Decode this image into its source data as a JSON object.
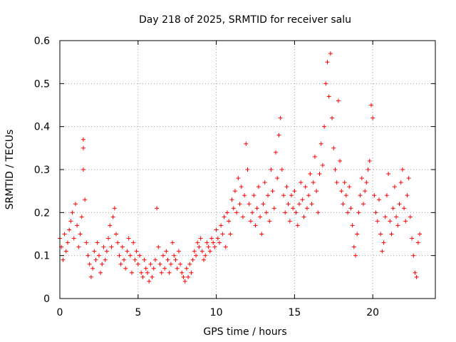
{
  "chart_data": {
    "type": "scatter",
    "title": "Day 218 of 2025, SRMTID for receiver salu",
    "xlabel": "GPS time / hours",
    "ylabel": "SRMTID / TECUs",
    "xlim": [
      0,
      24
    ],
    "ylim": [
      0,
      0.6
    ],
    "xticks": [
      0,
      5,
      10,
      15,
      20
    ],
    "xtick_labels": [
      "0",
      "5",
      "10",
      "15",
      "20"
    ],
    "yticks": [
      0,
      0.1,
      0.2,
      0.3,
      0.4,
      0.5,
      0.6
    ],
    "ytick_labels": [
      "0",
      "0.1",
      "0.2",
      "0.3",
      "0.4",
      "0.5",
      "0.6"
    ],
    "grid": true,
    "marker": "+",
    "color": "#ff0000",
    "series": [
      {
        "name": "SRMTID",
        "points": [
          [
            0.0,
            0.14
          ],
          [
            0.1,
            0.12
          ],
          [
            0.2,
            0.09
          ],
          [
            0.3,
            0.15
          ],
          [
            0.4,
            0.11
          ],
          [
            0.5,
            0.13
          ],
          [
            0.6,
            0.16
          ],
          [
            0.7,
            0.18
          ],
          [
            0.8,
            0.2
          ],
          [
            0.9,
            0.14
          ],
          [
            1.0,
            0.22
          ],
          [
            1.1,
            0.17
          ],
          [
            1.2,
            0.12
          ],
          [
            1.3,
            0.15
          ],
          [
            1.4,
            0.19
          ],
          [
            1.5,
            0.37
          ],
          [
            1.5,
            0.35
          ],
          [
            1.5,
            0.3
          ],
          [
            1.6,
            0.23
          ],
          [
            1.7,
            0.13
          ],
          [
            1.8,
            0.1
          ],
          [
            1.9,
            0.08
          ],
          [
            2.0,
            0.05
          ],
          [
            2.1,
            0.07
          ],
          [
            2.2,
            0.11
          ],
          [
            2.3,
            0.09
          ],
          [
            2.4,
            0.13
          ],
          [
            2.5,
            0.1
          ],
          [
            2.6,
            0.06
          ],
          [
            2.7,
            0.08
          ],
          [
            2.8,
            0.12
          ],
          [
            2.9,
            0.09
          ],
          [
            3.0,
            0.11
          ],
          [
            3.1,
            0.14
          ],
          [
            3.2,
            0.17
          ],
          [
            3.3,
            0.12
          ],
          [
            3.4,
            0.19
          ],
          [
            3.5,
            0.21
          ],
          [
            3.6,
            0.15
          ],
          [
            3.7,
            0.13
          ],
          [
            3.8,
            0.1
          ],
          [
            3.9,
            0.08
          ],
          [
            4.0,
            0.12
          ],
          [
            4.1,
            0.09
          ],
          [
            4.2,
            0.07
          ],
          [
            4.3,
            0.11
          ],
          [
            4.4,
            0.14
          ],
          [
            4.5,
            0.1
          ],
          [
            4.6,
            0.06
          ],
          [
            4.7,
            0.13
          ],
          [
            4.8,
            0.09
          ],
          [
            4.9,
            0.11
          ],
          [
            5.0,
            0.08
          ],
          [
            5.1,
            0.1
          ],
          [
            5.2,
            0.06
          ],
          [
            5.3,
            0.05
          ],
          [
            5.4,
            0.09
          ],
          [
            5.5,
            0.07
          ],
          [
            5.6,
            0.06
          ],
          [
            5.7,
            0.04
          ],
          [
            5.8,
            0.08
          ],
          [
            5.9,
            0.05
          ],
          [
            6.0,
            0.07
          ],
          [
            6.1,
            0.09
          ],
          [
            6.2,
            0.21
          ],
          [
            6.3,
            0.12
          ],
          [
            6.4,
            0.08
          ],
          [
            6.5,
            0.06
          ],
          [
            6.6,
            0.1
          ],
          [
            6.7,
            0.07
          ],
          [
            6.8,
            0.11
          ],
          [
            6.9,
            0.09
          ],
          [
            7.0,
            0.06
          ],
          [
            7.1,
            0.08
          ],
          [
            7.2,
            0.13
          ],
          [
            7.3,
            0.1
          ],
          [
            7.4,
            0.09
          ],
          [
            7.5,
            0.07
          ],
          [
            7.6,
            0.11
          ],
          [
            7.7,
            0.08
          ],
          [
            7.8,
            0.06
          ],
          [
            7.9,
            0.05
          ],
          [
            8.0,
            0.04
          ],
          [
            8.1,
            0.07
          ],
          [
            8.2,
            0.05
          ],
          [
            8.3,
            0.08
          ],
          [
            8.4,
            0.06
          ],
          [
            8.5,
            0.09
          ],
          [
            8.6,
            0.11
          ],
          [
            8.7,
            0.1
          ],
          [
            8.8,
            0.13
          ],
          [
            8.9,
            0.12
          ],
          [
            9.0,
            0.14
          ],
          [
            9.1,
            0.11
          ],
          [
            9.2,
            0.09
          ],
          [
            9.3,
            0.1
          ],
          [
            9.4,
            0.13
          ],
          [
            9.5,
            0.12
          ],
          [
            9.6,
            0.11
          ],
          [
            9.7,
            0.14
          ],
          [
            9.8,
            0.13
          ],
          [
            9.9,
            0.12
          ],
          [
            10.0,
            0.16
          ],
          [
            10.1,
            0.14
          ],
          [
            10.2,
            0.13
          ],
          [
            10.3,
            0.17
          ],
          [
            10.4,
            0.15
          ],
          [
            10.5,
            0.19
          ],
          [
            10.6,
            0.12
          ],
          [
            10.7,
            0.2
          ],
          [
            10.8,
            0.18
          ],
          [
            10.9,
            0.15
          ],
          [
            11.0,
            0.23
          ],
          [
            11.1,
            0.21
          ],
          [
            11.2,
            0.25
          ],
          [
            11.3,
            0.2
          ],
          [
            11.4,
            0.28
          ],
          [
            11.5,
            0.22
          ],
          [
            11.6,
            0.26
          ],
          [
            11.7,
            0.19
          ],
          [
            11.8,
            0.24
          ],
          [
            11.9,
            0.36
          ],
          [
            12.0,
            0.3
          ],
          [
            12.1,
            0.22
          ],
          [
            12.2,
            0.18
          ],
          [
            12.3,
            0.2
          ],
          [
            12.4,
            0.24
          ],
          [
            12.5,
            0.17
          ],
          [
            12.6,
            0.21
          ],
          [
            12.7,
            0.26
          ],
          [
            12.8,
            0.19
          ],
          [
            12.9,
            0.15
          ],
          [
            13.0,
            0.22
          ],
          [
            13.1,
            0.27
          ],
          [
            13.2,
            0.2
          ],
          [
            13.3,
            0.24
          ],
          [
            13.4,
            0.18
          ],
          [
            13.5,
            0.3
          ],
          [
            13.6,
            0.25
          ],
          [
            13.7,
            0.21
          ],
          [
            13.8,
            0.34
          ],
          [
            13.9,
            0.28
          ],
          [
            14.0,
            0.38
          ],
          [
            14.1,
            0.42
          ],
          [
            14.2,
            0.3
          ],
          [
            14.3,
            0.24
          ],
          [
            14.4,
            0.2
          ],
          [
            14.5,
            0.26
          ],
          [
            14.6,
            0.22
          ],
          [
            14.7,
            0.18
          ],
          [
            14.8,
            0.24
          ],
          [
            14.9,
            0.21
          ],
          [
            15.0,
            0.25
          ],
          [
            15.1,
            0.2
          ],
          [
            15.2,
            0.17
          ],
          [
            15.3,
            0.22
          ],
          [
            15.4,
            0.27
          ],
          [
            15.5,
            0.23
          ],
          [
            15.6,
            0.19
          ],
          [
            15.7,
            0.26
          ],
          [
            15.8,
            0.21
          ],
          [
            15.9,
            0.24
          ],
          [
            16.0,
            0.29
          ],
          [
            16.1,
            0.22
          ],
          [
            16.2,
            0.27
          ],
          [
            16.3,
            0.33
          ],
          [
            16.4,
            0.25
          ],
          [
            16.5,
            0.2
          ],
          [
            16.6,
            0.29
          ],
          [
            16.7,
            0.36
          ],
          [
            16.8,
            0.31
          ],
          [
            16.9,
            0.4
          ],
          [
            17.0,
            0.5
          ],
          [
            17.1,
            0.55
          ],
          [
            17.2,
            0.47
          ],
          [
            17.3,
            0.57
          ],
          [
            17.4,
            0.42
          ],
          [
            17.5,
            0.35
          ],
          [
            17.6,
            0.3
          ],
          [
            17.7,
            0.27
          ],
          [
            17.8,
            0.46
          ],
          [
            17.9,
            0.32
          ],
          [
            18.0,
            0.25
          ],
          [
            18.1,
            0.22
          ],
          [
            18.2,
            0.27
          ],
          [
            18.3,
            0.24
          ],
          [
            18.4,
            0.2
          ],
          [
            18.5,
            0.26
          ],
          [
            18.6,
            0.21
          ],
          [
            18.7,
            0.17
          ],
          [
            18.8,
            0.12
          ],
          [
            18.9,
            0.1
          ],
          [
            19.0,
            0.15
          ],
          [
            19.1,
            0.2
          ],
          [
            19.2,
            0.24
          ],
          [
            19.3,
            0.28
          ],
          [
            19.4,
            0.22
          ],
          [
            19.5,
            0.25
          ],
          [
            19.6,
            0.27
          ],
          [
            19.7,
            0.3
          ],
          [
            19.8,
            0.32
          ],
          [
            19.9,
            0.45
          ],
          [
            20.0,
            0.42
          ],
          [
            20.1,
            0.24
          ],
          [
            20.2,
            0.2
          ],
          [
            20.3,
            0.18
          ],
          [
            20.4,
            0.23
          ],
          [
            20.5,
            0.15
          ],
          [
            20.6,
            0.11
          ],
          [
            20.7,
            0.13
          ],
          [
            20.8,
            0.19
          ],
          [
            20.9,
            0.24
          ],
          [
            21.0,
            0.29
          ],
          [
            21.1,
            0.18
          ],
          [
            21.2,
            0.15
          ],
          [
            21.3,
            0.21
          ],
          [
            21.4,
            0.26
          ],
          [
            21.5,
            0.19
          ],
          [
            21.6,
            0.17
          ],
          [
            21.7,
            0.22
          ],
          [
            21.8,
            0.27
          ],
          [
            21.9,
            0.3
          ],
          [
            22.0,
            0.21
          ],
          [
            22.1,
            0.18
          ],
          [
            22.2,
            0.24
          ],
          [
            22.3,
            0.28
          ],
          [
            22.4,
            0.19
          ],
          [
            22.5,
            0.14
          ],
          [
            22.6,
            0.1
          ],
          [
            22.7,
            0.06
          ],
          [
            22.8,
            0.05
          ],
          [
            22.9,
            0.13
          ],
          [
            23.0,
            0.15
          ]
        ]
      }
    ]
  }
}
